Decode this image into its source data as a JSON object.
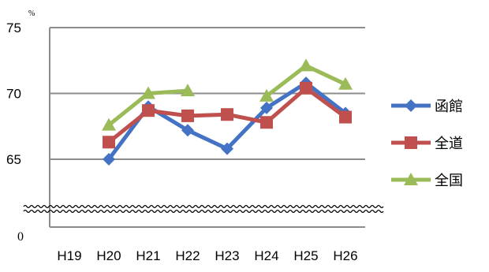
{
  "chart_data": {
    "type": "line",
    "title": "",
    "unit": "%",
    "categories": [
      "H19",
      "H20",
      "H21",
      "H22",
      "H23",
      "H24",
      "H25",
      "H26"
    ],
    "y_ticks": [
      "75",
      "70",
      "65"
    ],
    "y_zero_label": "0",
    "ylim": [
      60,
      75
    ],
    "axis_break": true,
    "grid": true,
    "legend_position": "right",
    "series": [
      {
        "name": "函館",
        "color": "#4472c4",
        "marker": "diamond",
        "values": [
          null,
          65.0,
          69.0,
          67.2,
          65.8,
          68.9,
          70.8,
          68.5
        ]
      },
      {
        "name": "全道",
        "color": "#c0504d",
        "marker": "square",
        "values": [
          null,
          66.3,
          68.7,
          68.3,
          68.4,
          67.8,
          70.4,
          68.2
        ]
      },
      {
        "name": "全国",
        "color": "#9bbb59",
        "marker": "triangle",
        "values": [
          null,
          67.6,
          70.0,
          70.2,
          null,
          69.8,
          72.1,
          70.7
        ]
      }
    ]
  }
}
